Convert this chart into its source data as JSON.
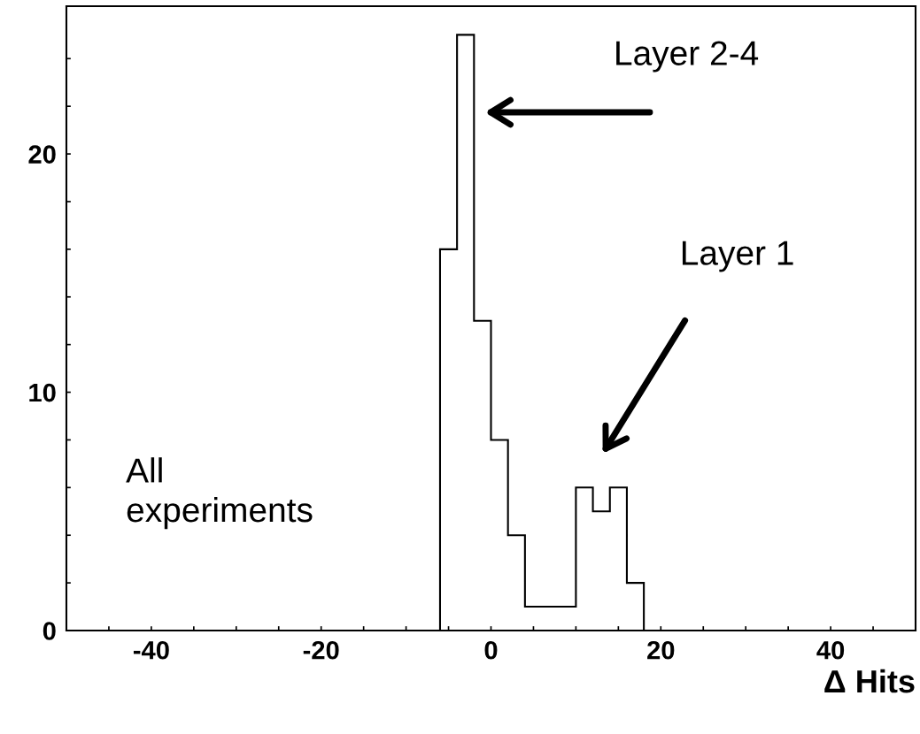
{
  "chart_data": {
    "type": "histogram",
    "xlabel": "Δ Hits",
    "bins": [
      -6,
      -4,
      -2,
      0,
      2,
      4,
      6,
      8,
      10,
      12,
      14,
      16,
      18
    ],
    "values": [
      16,
      25,
      13,
      8,
      4,
      1,
      1,
      1,
      6,
      5,
      6,
      2
    ],
    "color": "#000000",
    "xlim": [
      -50,
      50
    ],
    "ylim": [
      0,
      26.2
    ],
    "xticks": [
      {
        "value": -45,
        "label": null
      },
      {
        "value": -40,
        "label": "-40"
      },
      {
        "value": -35,
        "label": null
      },
      {
        "value": -30,
        "label": null
      },
      {
        "value": -25,
        "label": null
      },
      {
        "value": -20,
        "label": "-20"
      },
      {
        "value": -15,
        "label": null
      },
      {
        "value": -10,
        "label": null
      },
      {
        "value": -5,
        "label": null
      },
      {
        "value": 0,
        "label": "0"
      },
      {
        "value": 5,
        "label": null
      },
      {
        "value": 10,
        "label": null
      },
      {
        "value": 15,
        "label": null
      },
      {
        "value": 20,
        "label": "20"
      },
      {
        "value": 25,
        "label": null
      },
      {
        "value": 30,
        "label": null
      },
      {
        "value": 35,
        "label": null
      },
      {
        "value": 40,
        "label": "40"
      },
      {
        "value": 45,
        "label": null
      }
    ],
    "yticks": [
      0,
      {
        "value": 2,
        "label": null
      },
      {
        "value": 4,
        "label": null
      },
      {
        "value": 6,
        "label": null
      },
      {
        "value": 8,
        "label": null
      },
      10,
      {
        "value": 12,
        "label": null
      },
      {
        "value": 14,
        "label": null
      },
      {
        "value": 16,
        "label": null
      },
      {
        "value": 18,
        "label": null
      },
      20,
      {
        "value": 22,
        "label": null
      },
      {
        "value": 24,
        "label": null
      }
    ],
    "grid": false,
    "legend": false,
    "annotations": [
      "Layer 2-4",
      "Layer 1",
      "All\nexperiments"
    ]
  }
}
